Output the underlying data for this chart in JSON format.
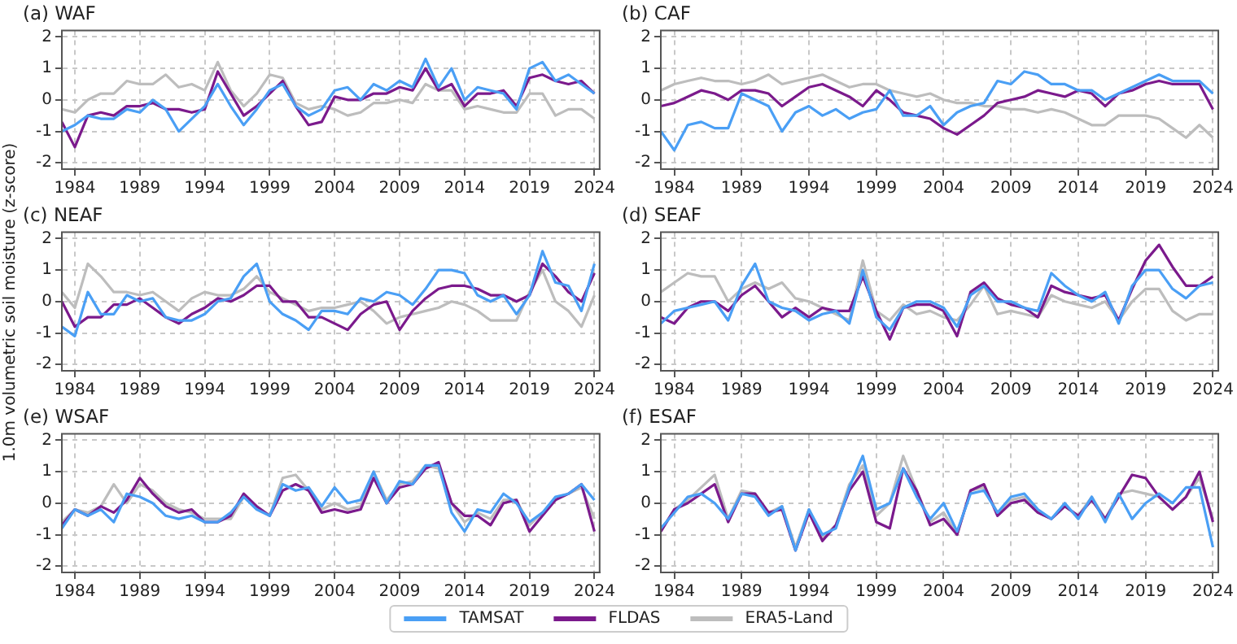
{
  "chart_data": [
    {
      "type": "line",
      "title": "(a) WAF",
      "legend": "bottom",
      "x": [
        1983,
        1984,
        1985,
        1986,
        1987,
        1988,
        1989,
        1990,
        1991,
        1992,
        1993,
        1994,
        1995,
        1996,
        1997,
        1998,
        1999,
        2000,
        2001,
        2002,
        2003,
        2004,
        2005,
        2006,
        2007,
        2008,
        2009,
        2010,
        2011,
        2012,
        2013,
        2014,
        2015,
        2016,
        2017,
        2018,
        2019,
        2020,
        2021,
        2022,
        2023,
        2024
      ],
      "xlim": [
        1983,
        2024.4
      ],
      "xticks": [
        1984,
        1989,
        1994,
        1999,
        2004,
        2009,
        2014,
        2019,
        2024
      ],
      "ylim": [
        -2.2,
        2.2
      ],
      "yticks": [
        -2,
        -1,
        0,
        1,
        2
      ],
      "grid": true,
      "series": [
        {
          "name": "TAMSAT",
          "color": "#4a9ff5",
          "values": [
            -1.0,
            -0.8,
            -0.5,
            -0.6,
            -0.6,
            -0.3,
            -0.4,
            0.0,
            -0.3,
            -1.0,
            -0.6,
            -0.2,
            0.5,
            -0.2,
            -0.8,
            -0.3,
            0.3,
            0.5,
            -0.2,
            -0.5,
            -0.3,
            0.3,
            0.4,
            0.0,
            0.5,
            0.3,
            0.6,
            0.4,
            1.3,
            0.4,
            1.0,
            0.0,
            0.4,
            0.3,
            0.2,
            -0.3,
            1.0,
            1.2,
            0.6,
            0.8,
            0.5,
            0.2
          ]
        },
        {
          "name": "FLDAS",
          "color": "#7b1a8c",
          "values": [
            -0.7,
            -1.5,
            -0.5,
            -0.4,
            -0.5,
            -0.2,
            -0.2,
            -0.1,
            -0.3,
            -0.3,
            -0.4,
            -0.3,
            0.9,
            0.2,
            -0.5,
            -0.2,
            0.2,
            0.6,
            -0.2,
            -0.8,
            -0.7,
            0.1,
            0.0,
            0.0,
            0.2,
            0.2,
            0.4,
            0.3,
            1.0,
            0.3,
            0.5,
            -0.2,
            0.2,
            0.2,
            0.3,
            -0.2,
            0.7,
            0.8,
            0.6,
            0.5,
            0.6,
            0.2
          ]
        },
        {
          "name": "ERA5-Land",
          "color": "#bdbdbd",
          "values": [
            -0.3,
            -0.4,
            0.0,
            0.2,
            0.2,
            0.6,
            0.5,
            0.5,
            0.8,
            0.4,
            0.5,
            0.3,
            1.2,
            0.3,
            -0.2,
            0.2,
            0.8,
            0.7,
            -0.1,
            -0.3,
            -0.2,
            -0.3,
            -0.5,
            -0.4,
            -0.1,
            -0.1,
            0.0,
            -0.1,
            0.5,
            0.3,
            0.3,
            -0.3,
            -0.2,
            -0.3,
            -0.4,
            -0.4,
            0.2,
            0.2,
            -0.5,
            -0.3,
            -0.3,
            -0.6
          ]
        }
      ]
    },
    {
      "type": "line",
      "title": "(b) CAF",
      "x": [
        1983,
        1984,
        1985,
        1986,
        1987,
        1988,
        1989,
        1990,
        1991,
        1992,
        1993,
        1994,
        1995,
        1996,
        1997,
        1998,
        1999,
        2000,
        2001,
        2002,
        2003,
        2004,
        2005,
        2006,
        2007,
        2008,
        2009,
        2010,
        2011,
        2012,
        2013,
        2014,
        2015,
        2016,
        2017,
        2018,
        2019,
        2020,
        2021,
        2022,
        2023,
        2024
      ],
      "xlim": [
        1983,
        2024.4
      ],
      "xticks": [
        1984,
        1989,
        1994,
        1999,
        2004,
        2009,
        2014,
        2019,
        2024
      ],
      "ylim": [
        -2.2,
        2.2
      ],
      "yticks": [
        -2,
        -1,
        0,
        1,
        2
      ],
      "grid": true,
      "series": [
        {
          "color": "#4a9ff5",
          "values": [
            -1.0,
            -1.6,
            -0.8,
            -0.7,
            -0.9,
            -0.9,
            0.2,
            0.0,
            -0.2,
            -1.0,
            -0.4,
            -0.2,
            -0.5,
            -0.3,
            -0.6,
            -0.4,
            -0.3,
            0.3,
            -0.5,
            -0.5,
            -0.2,
            -0.8,
            -0.4,
            -0.2,
            -0.1,
            0.6,
            0.5,
            0.9,
            0.8,
            0.5,
            0.5,
            0.3,
            0.3,
            0.0,
            0.2,
            0.4,
            0.6,
            0.8,
            0.6,
            0.6,
            0.6,
            0.2
          ]
        },
        {
          "color": "#7b1a8c",
          "values": [
            -0.2,
            -0.1,
            0.1,
            0.3,
            0.2,
            0.0,
            0.3,
            0.3,
            0.2,
            -0.2,
            0.1,
            0.4,
            0.5,
            0.3,
            0.1,
            -0.2,
            0.3,
            0.0,
            -0.4,
            -0.5,
            -0.6,
            -0.9,
            -1.1,
            -0.8,
            -0.5,
            -0.1,
            0.0,
            0.1,
            0.3,
            0.2,
            0.1,
            0.3,
            0.2,
            -0.2,
            0.2,
            0.3,
            0.5,
            0.6,
            0.5,
            0.5,
            0.5,
            -0.3
          ]
        },
        {
          "color": "#bdbdbd",
          "values": [
            0.3,
            0.5,
            0.6,
            0.7,
            0.6,
            0.6,
            0.5,
            0.6,
            0.8,
            0.5,
            0.6,
            0.7,
            0.8,
            0.6,
            0.4,
            0.5,
            0.5,
            0.3,
            0.2,
            0.1,
            0.2,
            0.0,
            -0.1,
            -0.1,
            -0.2,
            -0.2,
            -0.3,
            -0.3,
            -0.4,
            -0.3,
            -0.4,
            -0.6,
            -0.8,
            -0.8,
            -0.5,
            -0.5,
            -0.5,
            -0.6,
            -0.9,
            -1.2,
            -0.8,
            -1.2
          ]
        }
      ]
    },
    {
      "type": "line",
      "title": "(c) NEAF",
      "ylabel": "1.0m volumetric soil moisture (z-score)",
      "x": [
        1983,
        1984,
        1985,
        1986,
        1987,
        1988,
        1989,
        1990,
        1991,
        1992,
        1993,
        1994,
        1995,
        1996,
        1997,
        1998,
        1999,
        2000,
        2001,
        2002,
        2003,
        2004,
        2005,
        2006,
        2007,
        2008,
        2009,
        2010,
        2011,
        2012,
        2013,
        2014,
        2015,
        2016,
        2017,
        2018,
        2019,
        2020,
        2021,
        2022,
        2023,
        2024
      ],
      "xlim": [
        1983,
        2024.4
      ],
      "xticks": [
        1984,
        1989,
        1994,
        1999,
        2004,
        2009,
        2014,
        2019,
        2024
      ],
      "ylim": [
        -2.2,
        2.2
      ],
      "yticks": [
        -2,
        -1,
        0,
        1,
        2
      ],
      "grid": true,
      "series": [
        {
          "color": "#4a9ff5",
          "values": [
            -0.8,
            -1.1,
            0.3,
            -0.4,
            -0.4,
            0.2,
            0.0,
            0.1,
            -0.5,
            -0.6,
            -0.6,
            -0.4,
            0.0,
            0.1,
            0.8,
            1.2,
            0.0,
            -0.4,
            -0.6,
            -0.9,
            -0.3,
            -0.3,
            -0.4,
            0.1,
            0.0,
            0.3,
            0.2,
            -0.1,
            0.4,
            1.0,
            1.0,
            0.9,
            0.2,
            0.0,
            0.2,
            -0.4,
            0.2,
            1.6,
            0.6,
            0.5,
            -0.3,
            1.2
          ]
        },
        {
          "color": "#7b1a8c",
          "values": [
            0.0,
            -0.8,
            -0.5,
            -0.5,
            -0.1,
            -0.1,
            0.1,
            -0.2,
            -0.5,
            -0.7,
            -0.4,
            -0.2,
            0.1,
            0.0,
            0.2,
            0.5,
            0.5,
            0.0,
            0.0,
            -0.5,
            -0.5,
            -0.7,
            -0.9,
            -0.4,
            -0.1,
            0.0,
            -0.9,
            -0.3,
            0.1,
            0.4,
            0.5,
            0.5,
            0.4,
            0.2,
            0.2,
            0.0,
            0.2,
            1.2,
            0.8,
            0.3,
            0.0,
            0.9
          ]
        },
        {
          "color": "#bdbdbd",
          "values": [
            0.3,
            -0.2,
            1.2,
            0.8,
            0.3,
            0.3,
            0.2,
            0.3,
            0.0,
            -0.3,
            0.1,
            0.3,
            0.2,
            0.2,
            0.4,
            0.8,
            0.3,
            0.1,
            -0.1,
            -0.3,
            -0.2,
            -0.2,
            -0.1,
            0.0,
            -0.3,
            -0.7,
            -0.5,
            -0.4,
            -0.3,
            -0.2,
            0.0,
            -0.1,
            -0.3,
            -0.6,
            -0.6,
            -0.6,
            0.3,
            1.0,
            0.0,
            -0.3,
            -0.8,
            0.2
          ]
        }
      ]
    },
    {
      "type": "line",
      "title": "(d) SEAF",
      "x": [
        1983,
        1984,
        1985,
        1986,
        1987,
        1988,
        1989,
        1990,
        1991,
        1992,
        1993,
        1994,
        1995,
        1996,
        1997,
        1998,
        1999,
        2000,
        2001,
        2002,
        2003,
        2004,
        2005,
        2006,
        2007,
        2008,
        2009,
        2010,
        2011,
        2012,
        2013,
        2014,
        2015,
        2016,
        2017,
        2018,
        2019,
        2020,
        2021,
        2022,
        2023,
        2024
      ],
      "xlim": [
        1983,
        2024.4
      ],
      "xticks": [
        1984,
        1989,
        1994,
        1999,
        2004,
        2009,
        2014,
        2019,
        2024
      ],
      "ylim": [
        -2.2,
        2.2
      ],
      "yticks": [
        -2,
        -1,
        0,
        1,
        2
      ],
      "grid": true,
      "series": [
        {
          "color": "#4a9ff5",
          "values": [
            -0.7,
            -0.3,
            -0.2,
            -0.1,
            0.0,
            -0.6,
            0.5,
            1.2,
            0.0,
            -0.2,
            -0.3,
            -0.6,
            -0.4,
            -0.3,
            -0.7,
            1.0,
            -0.5,
            -0.9,
            -0.2,
            0.0,
            0.0,
            -0.2,
            -0.8,
            0.2,
            0.5,
            0.0,
            0.0,
            -0.2,
            -0.3,
            0.9,
            0.5,
            0.2,
            0.0,
            0.3,
            -0.7,
            0.5,
            1.0,
            1.0,
            0.4,
            0.1,
            0.5,
            0.6
          ]
        },
        {
          "color": "#7b1a8c",
          "values": [
            -0.5,
            -0.7,
            -0.2,
            0.0,
            0.0,
            -0.3,
            0.2,
            0.5,
            0.0,
            -0.5,
            -0.2,
            -0.5,
            -0.2,
            -0.3,
            -0.3,
            0.8,
            -0.3,
            -1.2,
            -0.2,
            -0.1,
            -0.1,
            -0.3,
            -1.1,
            0.3,
            0.6,
            0.1,
            -0.1,
            -0.2,
            -0.5,
            0.5,
            0.3,
            0.2,
            0.1,
            0.2,
            -0.6,
            0.4,
            1.3,
            1.8,
            1.1,
            0.5,
            0.5,
            0.8
          ]
        },
        {
          "color": "#bdbdbd",
          "values": [
            0.3,
            0.6,
            0.9,
            0.8,
            0.8,
            0.0,
            0.4,
            0.6,
            0.4,
            0.6,
            0.1,
            0.0,
            -0.2,
            -0.4,
            -0.6,
            1.3,
            -0.3,
            -0.6,
            -0.1,
            -0.4,
            -0.3,
            -0.5,
            -0.6,
            -0.1,
            0.5,
            -0.4,
            -0.3,
            -0.4,
            -0.5,
            0.2,
            0.0,
            -0.1,
            -0.2,
            0.0,
            -0.6,
            0.0,
            0.4,
            0.4,
            -0.3,
            -0.6,
            -0.4,
            -0.4
          ]
        }
      ]
    },
    {
      "type": "line",
      "title": "(e) WSAF",
      "x": [
        1983,
        1984,
        1985,
        1986,
        1987,
        1988,
        1989,
        1990,
        1991,
        1992,
        1993,
        1994,
        1995,
        1996,
        1997,
        1998,
        1999,
        2000,
        2001,
        2002,
        2003,
        2004,
        2005,
        2006,
        2007,
        2008,
        2009,
        2010,
        2011,
        2012,
        2013,
        2014,
        2015,
        2016,
        2017,
        2018,
        2019,
        2020,
        2021,
        2022,
        2023,
        2024
      ],
      "xlim": [
        1983,
        2024.4
      ],
      "xticks": [
        1984,
        1989,
        1994,
        1999,
        2004,
        2009,
        2014,
        2019,
        2024
      ],
      "ylim": [
        -2.2,
        2.2
      ],
      "yticks": [
        -2,
        -1,
        0,
        1,
        2
      ],
      "grid": true,
      "series": [
        {
          "color": "#4a9ff5",
          "values": [
            -0.8,
            -0.2,
            -0.4,
            -0.2,
            -0.6,
            0.3,
            0.2,
            0.0,
            -0.4,
            -0.5,
            -0.4,
            -0.6,
            -0.6,
            -0.3,
            0.2,
            -0.2,
            -0.4,
            0.6,
            0.4,
            0.5,
            -0.1,
            0.5,
            0.0,
            0.1,
            1.0,
            0.0,
            0.7,
            0.6,
            1.2,
            1.2,
            -0.3,
            -0.9,
            -0.2,
            -0.3,
            0.3,
            0.0,
            -0.6,
            -0.3,
            0.2,
            0.3,
            0.6,
            0.1
          ]
        },
        {
          "color": "#7b1a8c",
          "values": [
            -0.7,
            -0.2,
            -0.4,
            -0.1,
            -0.3,
            0.1,
            0.8,
            0.3,
            -0.1,
            -0.3,
            -0.2,
            -0.6,
            -0.6,
            -0.4,
            0.3,
            -0.1,
            -0.4,
            0.4,
            0.6,
            0.4,
            -0.3,
            -0.2,
            -0.3,
            -0.2,
            0.8,
            0.0,
            0.5,
            0.6,
            1.1,
            1.3,
            0.0,
            -0.4,
            -0.4,
            -0.7,
            0.0,
            0.1,
            -0.9,
            -0.4,
            0.1,
            0.3,
            0.6,
            -0.9
          ]
        },
        {
          "color": "#bdbdbd",
          "values": [
            -0.6,
            -0.2,
            -0.3,
            -0.1,
            0.6,
            0.0,
            0.6,
            0.4,
            0.0,
            -0.2,
            -0.3,
            -0.5,
            -0.5,
            -0.5,
            0.2,
            -0.1,
            -0.4,
            0.8,
            0.9,
            0.4,
            -0.2,
            0.0,
            -0.2,
            -0.1,
            1.0,
            0.1,
            0.6,
            0.7,
            1.2,
            1.1,
            0.0,
            -0.6,
            -0.3,
            -0.5,
            0.1,
            0.1,
            -0.7,
            -0.3,
            0.1,
            0.3,
            0.5,
            -0.5
          ]
        }
      ]
    },
    {
      "type": "line",
      "title": "(f) ESAF",
      "x": [
        1983,
        1984,
        1985,
        1986,
        1987,
        1988,
        1989,
        1990,
        1991,
        1992,
        1993,
        1994,
        1995,
        1996,
        1997,
        1998,
        1999,
        2000,
        2001,
        2002,
        2003,
        2004,
        2005,
        2006,
        2007,
        2008,
        2009,
        2010,
        2011,
        2012,
        2013,
        2014,
        2015,
        2016,
        2017,
        2018,
        2019,
        2020,
        2021,
        2022,
        2023,
        2024
      ],
      "xlim": [
        1983,
        2024.4
      ],
      "xticks": [
        1984,
        1989,
        1994,
        1999,
        2004,
        2009,
        2014,
        2019,
        2024
      ],
      "ylim": [
        -2.2,
        2.2
      ],
      "yticks": [
        -2,
        -1,
        0,
        1,
        2
      ],
      "grid": true,
      "series": [
        {
          "color": "#4a9ff5",
          "values": [
            -0.8,
            -0.3,
            0.2,
            0.3,
            0.0,
            -0.5,
            0.3,
            0.2,
            -0.4,
            -0.1,
            -1.5,
            -0.2,
            -1.0,
            -0.8,
            0.5,
            1.5,
            -0.2,
            0.0,
            1.1,
            0.2,
            -0.5,
            0.0,
            -0.9,
            0.3,
            0.4,
            -0.3,
            0.2,
            0.3,
            -0.2,
            -0.5,
            0.0,
            -0.5,
            0.2,
            -0.6,
            0.3,
            -0.5,
            0.0,
            0.3,
            0.0,
            0.5,
            0.5,
            -1.4
          ]
        },
        {
          "color": "#7b1a8c",
          "values": [
            -0.9,
            -0.2,
            0.0,
            0.3,
            0.6,
            -0.6,
            0.3,
            0.3,
            -0.3,
            -0.2,
            -1.5,
            -0.3,
            -1.2,
            -0.7,
            0.4,
            1.0,
            -0.6,
            -0.8,
            1.1,
            0.4,
            -0.7,
            -0.5,
            -1.0,
            0.4,
            0.6,
            -0.4,
            0.0,
            0.1,
            -0.3,
            -0.5,
            -0.1,
            -0.4,
            0.1,
            -0.5,
            0.2,
            0.9,
            0.8,
            0.2,
            -0.2,
            0.2,
            1.0,
            -0.6
          ]
        },
        {
          "color": "#bdbdbd",
          "values": [
            -0.9,
            -0.2,
            0.1,
            0.5,
            0.9,
            -0.5,
            0.4,
            0.3,
            -0.3,
            -0.1,
            -1.4,
            -0.2,
            -1.1,
            -0.7,
            0.6,
            1.2,
            -0.4,
            0.0,
            1.5,
            0.4,
            -0.6,
            -0.3,
            -1.0,
            0.4,
            0.5,
            -0.3,
            0.1,
            0.2,
            -0.3,
            -0.5,
            -0.1,
            -0.4,
            0.2,
            -0.5,
            0.3,
            0.4,
            0.3,
            0.2,
            -0.2,
            0.2,
            0.8,
            -0.5
          ]
        }
      ]
    }
  ]
}
